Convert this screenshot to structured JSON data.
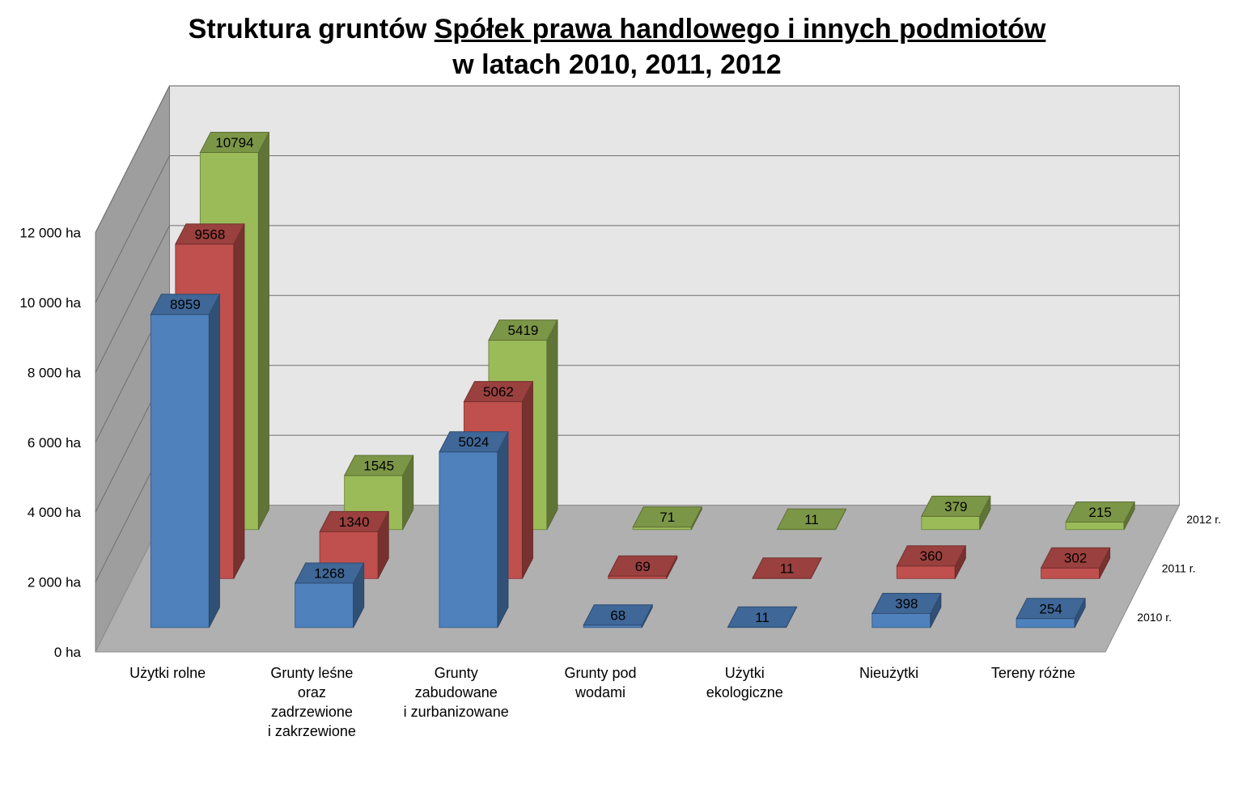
{
  "chart_data": {
    "type": "bar",
    "title": {
      "line1_plain": "Struktura gruntów ",
      "line1_underlined": "Spółek prawa handlowego i innych podmiotów",
      "line2": "w latach 2010, 2011, 2012"
    },
    "categories": [
      [
        "Użytki rolne"
      ],
      [
        "Grunty leśne",
        "oraz",
        "zadrzewione",
        "i zakrzewione"
      ],
      [
        "Grunty",
        "zabudowane",
        "i zurbanizowane"
      ],
      [
        "Grunty pod",
        "wodami"
      ],
      [
        "Użytki",
        "ekologiczne"
      ],
      [
        "Nieużytki"
      ],
      [
        "Tereny różne"
      ]
    ],
    "series": [
      {
        "name": "2010 r.",
        "values": [
          8959,
          1268,
          5024,
          68,
          11,
          398,
          254
        ],
        "labels": [
          "8959",
          "1268",
          "5024",
          "68",
          "11",
          "398",
          "254"
        ],
        "color": "#4F81BD"
      },
      {
        "name": "2011 r.",
        "values": [
          9568,
          1340,
          5062,
          69,
          11,
          360,
          302
        ],
        "labels": [
          "9568",
          "1340",
          "5062",
          "69",
          "11",
          "360",
          "302"
        ],
        "color": "#C0504D"
      },
      {
        "name": "2012 r.",
        "values": [
          10794,
          1545,
          5419,
          71,
          11,
          379,
          215
        ],
        "labels": [
          "10794",
          "1545",
          "5419",
          "71",
          "11",
          "379",
          "215"
        ],
        "color": "#9BBB59"
      }
    ],
    "y_ticks": [
      {
        "value": 0,
        "label": "0 ha"
      },
      {
        "value": 2000,
        "label": "2 000 ha"
      },
      {
        "value": 4000,
        "label": "4 000 ha"
      },
      {
        "value": 6000,
        "label": "6 000 ha"
      },
      {
        "value": 8000,
        "label": "8 000 ha"
      },
      {
        "value": 10000,
        "label": "10 000 ha"
      },
      {
        "value": 12000,
        "label": "12 000 ha"
      }
    ],
    "ylim": [
      0,
      12000
    ],
    "grid": true,
    "projection": "3d-columns"
  }
}
